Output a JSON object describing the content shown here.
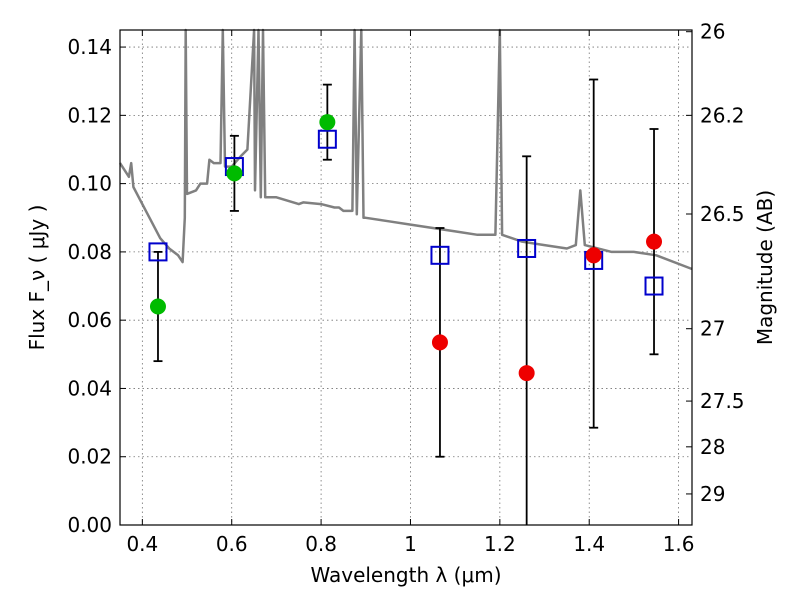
{
  "chart_data": {
    "type": "scatter",
    "xlabel": "Wavelength  λ (μm)",
    "ylabel": "Flux  F_ν  ( μJy )",
    "y2label": "Magnitude (AB)",
    "xlim": [
      0.35,
      1.63
    ],
    "ylim": [
      0.0,
      0.145
    ],
    "grid": true,
    "x_ticks": [
      0.4,
      0.6,
      0.8,
      1.0,
      1.2,
      1.4,
      1.6
    ],
    "x_tick_labels": [
      "0.4",
      "0.6",
      "0.8",
      "1",
      "1.2",
      "1.4",
      "1.6"
    ],
    "y_ticks": [
      0.0,
      0.02,
      0.04,
      0.06,
      0.08,
      0.1,
      0.12,
      0.14
    ],
    "y_tick_labels": [
      "0.00",
      "0.02",
      "0.04",
      "0.06",
      "0.08",
      "0.10",
      "0.12",
      "0.14"
    ],
    "y2_ticks": [
      {
        "label": "26",
        "flux": 0.1445
      },
      {
        "label": "26.2",
        "flux": 0.12
      },
      {
        "label": "26.5",
        "flux": 0.0911
      },
      {
        "label": "27",
        "flux": 0.0575
      },
      {
        "label": "27.5",
        "flux": 0.0363
      },
      {
        "label": "28",
        "flux": 0.0229
      },
      {
        "label": "29",
        "flux": 0.0091
      }
    ],
    "series": [
      {
        "marker": "circle",
        "color": "#00bb00",
        "points": [
          {
            "x": 0.435,
            "y": 0.064,
            "err_low": 0.048,
            "err_high": 0.08
          },
          {
            "x": 0.606,
            "y": 0.103,
            "err_low": 0.092,
            "err_high": 0.114
          },
          {
            "x": 0.814,
            "y": 0.118,
            "err_low": 0.107,
            "err_high": 0.129
          }
        ]
      },
      {
        "marker": "circle",
        "color": "#ee0000",
        "points": [
          {
            "x": 1.066,
            "y": 0.0535,
            "err_low": 0.02,
            "err_high": 0.087
          },
          {
            "x": 1.26,
            "y": 0.0445,
            "err_low": 0.0,
            "err_high": 0.108
          },
          {
            "x": 1.41,
            "y": 0.079,
            "err_low": 0.0285,
            "err_high": 0.1305
          },
          {
            "x": 1.545,
            "y": 0.083,
            "err_low": 0.05,
            "err_high": 0.116
          }
        ]
      },
      {
        "marker": "open-square",
        "color": "#0000cc",
        "points": [
          {
            "x": 0.435,
            "y": 0.08
          },
          {
            "x": 0.606,
            "y": 0.105
          },
          {
            "x": 0.814,
            "y": 0.113
          },
          {
            "x": 1.066,
            "y": 0.079
          },
          {
            "x": 1.26,
            "y": 0.081
          },
          {
            "x": 1.41,
            "y": 0.0775
          },
          {
            "x": 1.545,
            "y": 0.07
          }
        ]
      },
      {
        "marker": "line",
        "color": "#808080",
        "points": [
          {
            "x": 0.35,
            "y": 0.106
          },
          {
            "x": 0.37,
            "y": 0.102
          },
          {
            "x": 0.375,
            "y": 0.106
          },
          {
            "x": 0.38,
            "y": 0.099
          },
          {
            "x": 0.4,
            "y": 0.094
          },
          {
            "x": 0.42,
            "y": 0.089
          },
          {
            "x": 0.44,
            "y": 0.084
          },
          {
            "x": 0.46,
            "y": 0.081
          },
          {
            "x": 0.48,
            "y": 0.079
          },
          {
            "x": 0.49,
            "y": 0.077
          },
          {
            "x": 0.495,
            "y": 0.09
          },
          {
            "x": 0.497,
            "y": 0.145
          },
          {
            "x": 0.5,
            "y": 0.097
          },
          {
            "x": 0.52,
            "y": 0.098
          },
          {
            "x": 0.53,
            "y": 0.1
          },
          {
            "x": 0.545,
            "y": 0.1
          },
          {
            "x": 0.55,
            "y": 0.107
          },
          {
            "x": 0.56,
            "y": 0.106
          },
          {
            "x": 0.575,
            "y": 0.106
          },
          {
            "x": 0.58,
            "y": 0.145
          },
          {
            "x": 0.585,
            "y": 0.105
          },
          {
            "x": 0.6,
            "y": 0.105
          },
          {
            "x": 0.62,
            "y": 0.108
          },
          {
            "x": 0.635,
            "y": 0.11
          },
          {
            "x": 0.65,
            "y": 0.145
          },
          {
            "x": 0.652,
            "y": 0.098
          },
          {
            "x": 0.66,
            "y": 0.145
          },
          {
            "x": 0.665,
            "y": 0.096
          },
          {
            "x": 0.67,
            "y": 0.145
          },
          {
            "x": 0.675,
            "y": 0.096
          },
          {
            "x": 0.7,
            "y": 0.096
          },
          {
            "x": 0.75,
            "y": 0.094
          },
          {
            "x": 0.76,
            "y": 0.0945
          },
          {
            "x": 0.8,
            "y": 0.094
          },
          {
            "x": 0.83,
            "y": 0.093
          },
          {
            "x": 0.84,
            "y": 0.093
          },
          {
            "x": 0.85,
            "y": 0.092
          },
          {
            "x": 0.87,
            "y": 0.092
          },
          {
            "x": 0.875,
            "y": 0.145
          },
          {
            "x": 0.88,
            "y": 0.091
          },
          {
            "x": 0.89,
            "y": 0.145
          },
          {
            "x": 0.895,
            "y": 0.09
          },
          {
            "x": 0.9,
            "y": 0.09
          },
          {
            "x": 0.95,
            "y": 0.089
          },
          {
            "x": 1.0,
            "y": 0.088
          },
          {
            "x": 1.05,
            "y": 0.087
          },
          {
            "x": 1.1,
            "y": 0.086
          },
          {
            "x": 1.15,
            "y": 0.085
          },
          {
            "x": 1.19,
            "y": 0.085
          },
          {
            "x": 1.2,
            "y": 0.145
          },
          {
            "x": 1.205,
            "y": 0.085
          },
          {
            "x": 1.25,
            "y": 0.083
          },
          {
            "x": 1.3,
            "y": 0.082
          },
          {
            "x": 1.35,
            "y": 0.081
          },
          {
            "x": 1.37,
            "y": 0.082
          },
          {
            "x": 1.38,
            "y": 0.098
          },
          {
            "x": 1.39,
            "y": 0.082
          },
          {
            "x": 1.45,
            "y": 0.08
          },
          {
            "x": 1.5,
            "y": 0.08
          },
          {
            "x": 1.55,
            "y": 0.079
          },
          {
            "x": 1.63,
            "y": 0.075
          }
        ]
      }
    ]
  }
}
